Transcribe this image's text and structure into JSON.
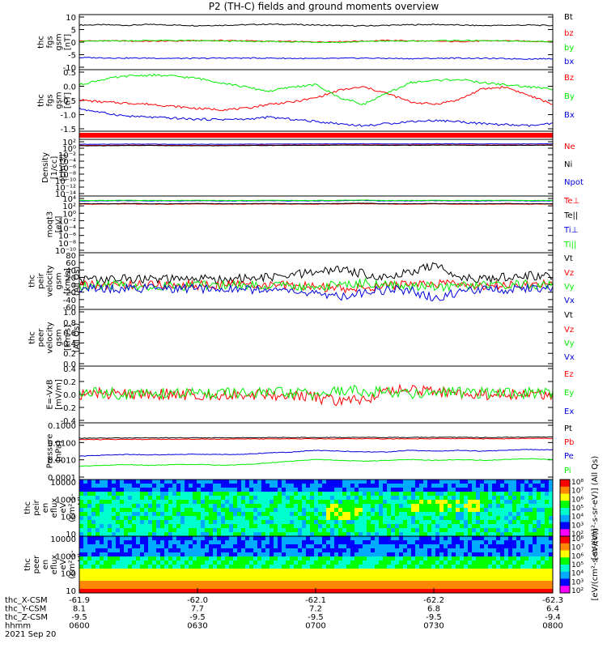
{
  "title": "P2 (TH-C) fields and ground moments overview",
  "date_label": "2021 Sep 20",
  "x_tick_rows": [
    {
      "label": "thc_X-CSM",
      "values": [
        "-61.9",
        "-62.0",
        "-62.1",
        "-62.2",
        "-62.3"
      ]
    },
    {
      "label": "thc_Y-CSM",
      "values": [
        "8.1",
        "7.7",
        "7.2",
        "6.8",
        "6.4"
      ]
    },
    {
      "label": "thc_Z-CSM",
      "values": [
        "-9.5",
        "-9.5",
        "-9.5",
        "-9.5",
        "-9.4"
      ]
    },
    {
      "label": "hhmm",
      "values": [
        "0600",
        "0630",
        "0700",
        "0730",
        "0800"
      ]
    }
  ],
  "colors": {
    "black": "#000000",
    "red": "#ff0000",
    "green": "#00ee00",
    "blue": "#0000dd"
  },
  "chart_data": [
    {
      "type": "line",
      "ylabel": [
        "thc",
        "fgs",
        "gsm",
        "[nT]"
      ],
      "yticks": [
        "10",
        "5",
        "0",
        "-5",
        "-10"
      ],
      "ylim": [
        -10,
        10
      ],
      "series": [
        {
          "name": "Bt",
          "color": "#000000",
          "values": [
            6.2,
            6.3,
            6.1,
            6.4,
            6.2,
            6.0,
            6.1,
            6.3,
            6.5,
            6.4,
            6.2,
            6.0,
            5.9,
            6.1,
            6.3,
            6.4,
            6.2,
            6.0,
            6.1,
            6.2,
            6.0
          ]
        },
        {
          "name": "bz",
          "color": "#ff0000",
          "values": [
            0.4,
            0.5,
            0.4,
            0.3,
            0.4,
            0.5,
            0.6,
            0.5,
            0.3,
            0.2,
            0.1,
            0.2,
            0.4,
            0.6,
            0.5,
            0.3,
            0.2,
            0.4,
            0.5,
            0.3,
            0.2
          ]
        },
        {
          "name": "by",
          "color": "#00ee00",
          "values": [
            0.3,
            0.4,
            0.5,
            0.6,
            0.6,
            0.5,
            0.4,
            0.3,
            0.2,
            0.1,
            0.0,
            -0.1,
            0.2,
            0.4,
            0.3,
            0.5,
            0.6,
            0.5,
            0.4,
            0.3,
            0.2
          ]
        },
        {
          "name": "bx",
          "color": "#0000dd",
          "values": [
            -5.6,
            -5.7,
            -5.8,
            -5.8,
            -5.9,
            -5.9,
            -5.8,
            -5.8,
            -5.8,
            -5.9,
            -6.0,
            -5.9,
            -5.8,
            -5.9,
            -6.0,
            -5.9,
            -5.8,
            -5.9,
            -6.0,
            -6.1,
            -6.0
          ]
        }
      ]
    },
    {
      "type": "line",
      "ylabel": [
        "thc",
        "fgs",
        "gsm",
        "[nT]"
      ],
      "yticks": [
        "0.5",
        "0.0",
        "-0.5",
        "-1.0",
        "-1.5"
      ],
      "ylim": [
        -1.85,
        1.0
      ],
      "series": [
        {
          "name": "Bz",
          "color": "#ff0000",
          "values": [
            -0.4,
            -0.5,
            -0.55,
            -0.6,
            -0.7,
            -0.8,
            -0.85,
            -0.8,
            -0.6,
            -0.5,
            -0.3,
            0.05,
            0.2,
            -0.1,
            -0.5,
            -0.6,
            -0.4,
            0.1,
            0.2,
            -0.2,
            -0.6
          ]
        },
        {
          "name": "By",
          "color": "#00ee00",
          "values": [
            0.3,
            0.55,
            0.7,
            0.75,
            0.7,
            0.6,
            0.4,
            0.2,
            0.0,
            0.2,
            0.3,
            -0.3,
            -0.6,
            -0.1,
            0.4,
            0.5,
            0.55,
            0.4,
            0.3,
            0.2,
            0.1
          ]
        },
        {
          "name": "Bx",
          "color": "#0000dd",
          "values": [
            -0.8,
            -1.0,
            -1.15,
            -1.2,
            -1.25,
            -1.3,
            -1.3,
            -1.3,
            -1.2,
            -1.3,
            -1.4,
            -1.5,
            -1.6,
            -1.5,
            -1.4,
            -1.35,
            -1.4,
            -1.5,
            -1.55,
            -1.6,
            -1.5
          ]
        }
      ]
    },
    {
      "type": "bar",
      "ylabel": [],
      "yticks": [],
      "series": [
        {
          "name": "",
          "color": "#ff0000",
          "values": [
            1
          ]
        }
      ]
    },
    {
      "type": "line",
      "ylabel": [
        "Density",
        "[1/cc]",
        "[cm-3]"
      ],
      "yticks": [
        "10²",
        "10⁰",
        "10⁻²",
        "10⁻⁴",
        "10⁻⁶",
        "10⁻⁸",
        "10⁻¹⁰",
        "10⁻¹²",
        "10⁻¹⁴"
      ],
      "ylim": [
        -14,
        2
      ],
      "series": [
        {
          "name": "Ne",
          "color": "#ff0000",
          "values": [
            0.3,
            0.3,
            0.35,
            0.35,
            0.3,
            0.3,
            0.3,
            0.35,
            0.35,
            0.4,
            0.4,
            0.45,
            0.45,
            0.4,
            0.4,
            0.45,
            0.45,
            0.4,
            0.4,
            0.4,
            0.45
          ]
        },
        {
          "name": "Ni",
          "color": "#000000",
          "values": [
            0.2,
            0.2,
            0.25,
            0.25,
            0.2,
            0.2,
            0.2,
            0.25,
            0.25,
            0.3,
            0.3,
            0.35,
            0.35,
            0.3,
            0.3,
            0.35,
            0.35,
            0.3,
            0.3,
            0.3,
            0.35
          ]
        },
        {
          "name": "Npot",
          "color": "#0000dd",
          "values": [
            0.6,
            0.6,
            0.65,
            0.65,
            0.6,
            0.6,
            0.6,
            0.65,
            0.65,
            0.7,
            0.7,
            0.75,
            0.75,
            0.7,
            0.7,
            0.75,
            0.75,
            0.7,
            0.7,
            0.7,
            0.75
          ]
        }
      ]
    },
    {
      "type": "line",
      "ylabel": [
        "moqt3",
        "[eV]"
      ],
      "yticks": [
        "10⁴",
        "10²",
        "10⁰",
        "10⁻²",
        "10⁻⁴",
        "10⁻⁶",
        "10⁻⁸",
        "10⁻¹⁰"
      ],
      "ylim": [
        -10,
        4
      ],
      "series": [
        {
          "name": "Te⊥",
          "color": "#ff0000",
          "values": [
            2.0,
            2.0,
            2.05,
            2.0,
            2.0,
            2.05,
            2.0,
            2.0,
            2.05,
            2.0,
            2.0,
            2.05,
            2.1,
            2.0,
            2.0,
            2.05,
            2.0,
            2.0,
            2.05,
            2.0,
            2.0
          ]
        },
        {
          "name": "Te||",
          "color": "#000000",
          "values": [
            2.1,
            2.1,
            2.15,
            2.1,
            2.1,
            2.15,
            2.1,
            2.1,
            2.15,
            2.1,
            2.1,
            2.15,
            2.2,
            2.1,
            2.1,
            2.15,
            2.1,
            2.1,
            2.15,
            2.1,
            2.1
          ]
        },
        {
          "name": "Ti⊥",
          "color": "#0000dd",
          "values": [
            2.8,
            2.8,
            2.85,
            2.8,
            2.8,
            2.85,
            2.8,
            2.8,
            2.85,
            2.8,
            2.8,
            2.85,
            2.9,
            2.8,
            2.8,
            2.85,
            2.8,
            2.8,
            2.85,
            2.8,
            2.8
          ]
        },
        {
          "name": "Ti||",
          "color": "#00ee00",
          "values": [
            2.9,
            2.9,
            2.95,
            2.9,
            2.9,
            2.95,
            2.9,
            2.9,
            2.95,
            2.9,
            2.9,
            2.95,
            3.0,
            2.9,
            2.9,
            2.95,
            2.9,
            2.9,
            2.95,
            2.9,
            2.9
          ]
        }
      ]
    },
    {
      "type": "line",
      "ylabel": [
        "thc",
        "peir",
        "velocity",
        "gsm",
        "[km/s]",
        "(All Qs)"
      ],
      "yticks": [
        "80",
        "60",
        "40",
        "20",
        "0",
        "-20",
        "-40",
        "-60"
      ],
      "ylim": [
        -60,
        90
      ],
      "series": [
        {
          "name": "Vt",
          "color": "#000000",
          "values": [
            20,
            18,
            22,
            20,
            19,
            21,
            20,
            22,
            24,
            30,
            40,
            45,
            35,
            25,
            40,
            55,
            30,
            20,
            25,
            30,
            28
          ]
        },
        {
          "name": "Vz",
          "color": "#ff0000",
          "values": [
            5,
            3,
            6,
            4,
            5,
            4,
            6,
            5,
            4,
            2,
            0,
            -5,
            -3,
            2,
            6,
            10,
            5,
            2,
            4,
            6,
            5
          ]
        },
        {
          "name": "Vy",
          "color": "#00ee00",
          "values": [
            2,
            4,
            3,
            1,
            2,
            3,
            5,
            4,
            3,
            2,
            -2,
            5,
            10,
            4,
            2,
            0,
            3,
            4,
            5,
            6,
            4
          ]
        },
        {
          "name": "Vx",
          "color": "#0000dd",
          "values": [
            -5,
            -6,
            -4,
            -5,
            -6,
            -5,
            -4,
            -6,
            -8,
            -12,
            -20,
            -25,
            -15,
            -8,
            -10,
            -30,
            -15,
            -10,
            -8,
            -6,
            -5
          ]
        }
      ]
    },
    {
      "type": "line",
      "ylabel": [
        "thc",
        "peer",
        "velocity",
        "gsm",
        "[km/s]",
        "(All Qs)"
      ],
      "yticks": [
        "1.0",
        "0.8",
        "0.6",
        "0.4",
        "0.2",
        "0.0"
      ],
      "ylim": [
        0,
        1.0
      ],
      "series": [
        {
          "name": "Vt",
          "color": "#000000",
          "values": []
        },
        {
          "name": "Vz",
          "color": "#ff0000",
          "values": []
        },
        {
          "name": "Vy",
          "color": "#00ee00",
          "values": []
        },
        {
          "name": "Vx",
          "color": "#0000dd",
          "values": []
        }
      ]
    },
    {
      "type": "line",
      "ylabel": [
        "E=-VxB",
        "[mV/m]"
      ],
      "yticks": [
        "0.4",
        "0.2",
        "0.0",
        "-0.2",
        "-0.4"
      ],
      "ylim": [
        -0.45,
        0.45
      ],
      "series": [
        {
          "name": "Ez",
          "color": "#ff0000",
          "values": [
            0.0,
            0.02,
            0.0,
            0.01,
            0.0,
            -0.01,
            0.0,
            0.01,
            0.0,
            -0.02,
            -0.05,
            -0.12,
            -0.08,
            0.05,
            0.08,
            0.05,
            0.02,
            0.0,
            0.01,
            0.0,
            0.0
          ]
        },
        {
          "name": "Ey",
          "color": "#00ee00",
          "values": [
            0.02,
            0.03,
            0.0,
            0.02,
            0.01,
            0.03,
            0.02,
            0.01,
            0.03,
            0.02,
            0.0,
            0.05,
            0.06,
            0.03,
            0.02,
            0.04,
            0.03,
            0.02,
            0.03,
            0.02,
            0.01
          ]
        },
        {
          "name": "Ex",
          "color": "#0000dd",
          "values": []
        }
      ]
    },
    {
      "type": "line",
      "ylabel": [
        "Pressure",
        "[nPa]"
      ],
      "yticks": [
        "0.1000",
        "0.0100",
        "0.0010",
        "0.0001"
      ],
      "ylim": [
        -4.2,
        -0.8
      ],
      "series": [
        {
          "name": "Pt",
          "color": "#000000",
          "values": [
            -1.72,
            -1.72,
            -1.71,
            -1.7,
            -1.7,
            -1.7,
            -1.7,
            -1.69,
            -1.69,
            -1.68,
            -1.68,
            -1.68,
            -1.67,
            -1.68,
            -1.68,
            -1.67,
            -1.67,
            -1.68,
            -1.67,
            -1.66,
            -1.66
          ]
        },
        {
          "name": "Pb",
          "color": "#ff0000",
          "values": [
            -1.8,
            -1.8,
            -1.79,
            -1.79,
            -1.78,
            -1.78,
            -1.78,
            -1.77,
            -1.77,
            -1.76,
            -1.76,
            -1.76,
            -1.75,
            -1.76,
            -1.76,
            -1.75,
            -1.75,
            -1.76,
            -1.75,
            -1.74,
            -1.74
          ]
        },
        {
          "name": "Pe",
          "color": "#0000dd",
          "values": [
            -2.8,
            -2.75,
            -2.7,
            -2.72,
            -2.7,
            -2.68,
            -2.7,
            -2.68,
            -2.6,
            -2.55,
            -2.45,
            -2.5,
            -2.55,
            -2.55,
            -2.45,
            -2.5,
            -2.45,
            -2.5,
            -2.45,
            -2.4,
            -2.42
          ]
        },
        {
          "name": "Pi",
          "color": "#00ee00",
          "values": [
            -3.4,
            -3.35,
            -3.3,
            -3.35,
            -3.3,
            -3.3,
            -3.35,
            -3.3,
            -3.2,
            -3.1,
            -3.0,
            -3.05,
            -3.1,
            -3.05,
            -3.0,
            -3.05,
            -3.0,
            -3.05,
            -3.0,
            -2.95,
            -3.0
          ]
        }
      ]
    },
    {
      "type": "heatmap",
      "ylabel": [
        "thc",
        "peir",
        "en",
        "eflux",
        "eV",
        "(cm²-s-",
        "sr-eV)"
      ],
      "yticks": [
        "10000",
        "1000",
        "100",
        "10"
      ],
      "colorbar_label": "[eV/(cm²-s-sr-eV)] (All Qs)",
      "colorbar_ticks": [
        "10⁸",
        "10⁷",
        "10⁶",
        "10⁵",
        "10⁴",
        "10³",
        "10²"
      ]
    },
    {
      "type": "heatmap",
      "ylabel": [
        "thc",
        "peer",
        "en",
        "eflux",
        "eV",
        "(cm²-s-",
        "sr-eV)"
      ],
      "yticks": [
        "10000",
        "1000",
        "100",
        "10"
      ],
      "colorbar_label": "[eV/(cm²-s-sr-eV)]",
      "colorbar_ticks": [
        "10⁸",
        "10⁷",
        "10⁶",
        "10⁵",
        "10⁴",
        "10³",
        "10²"
      ]
    }
  ]
}
